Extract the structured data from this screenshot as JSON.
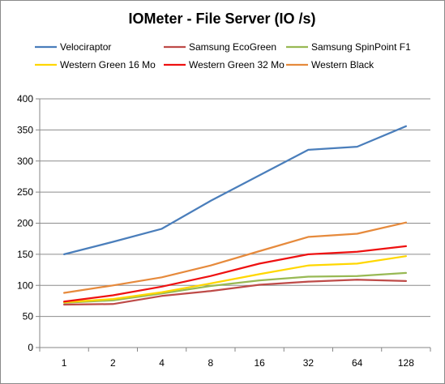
{
  "chart_data": {
    "type": "line",
    "title": "IOMeter - File Server (IO /s)",
    "xlabel": "",
    "ylabel": "",
    "categories": [
      "1",
      "2",
      "4",
      "8",
      "16",
      "32",
      "64",
      "128"
    ],
    "ylim": [
      0,
      400
    ],
    "yticks": [
      0,
      50,
      100,
      150,
      200,
      250,
      300,
      350,
      400
    ],
    "grid": "horizontal",
    "legend_position": "top",
    "series": [
      {
        "name": "Velociraptor",
        "color": "#4a7ebb",
        "values": [
          150,
          170,
          191,
          236,
          277,
          318,
          323,
          356
        ]
      },
      {
        "name": "Samsung EcoGreen",
        "color": "#be4b48",
        "values": [
          69,
          70,
          83,
          91,
          101,
          106,
          109,
          107
        ]
      },
      {
        "name": "Samsung SpinPoint F1",
        "color": "#98b954",
        "values": [
          72,
          76,
          87,
          99,
          108,
          114,
          115,
          120
        ]
      },
      {
        "name": "Western Green 16 Mo",
        "color": "#ffd700",
        "values": [
          73,
          78,
          89,
          103,
          118,
          132,
          135,
          147
        ]
      },
      {
        "name": "Western Green 32 Mo",
        "color": "#ee1111",
        "values": [
          74,
          84,
          98,
          115,
          135,
          150,
          154,
          163
        ]
      },
      {
        "name": "Western Black",
        "color": "#e68a3c",
        "values": [
          88,
          100,
          113,
          132,
          155,
          178,
          183,
          201
        ]
      }
    ]
  }
}
